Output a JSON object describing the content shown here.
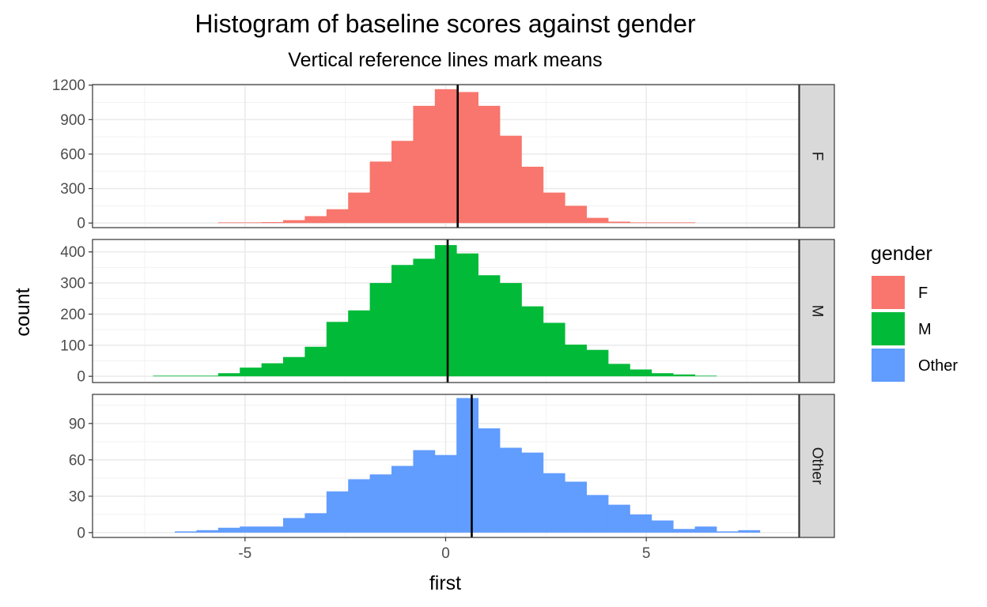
{
  "chart_data": {
    "type": "bar",
    "title": "Histogram of baseline scores against gender",
    "subtitle": "Vertical reference lines mark means",
    "xlabel": "first",
    "ylabel": "count",
    "xlim": [
      -8.8,
      8.8
    ],
    "x_ticks": [
      -5,
      0,
      5
    ],
    "x_tick_labels": [
      "-5",
      "0",
      "5"
    ],
    "bin_width": 0.54,
    "grid": true,
    "legend": {
      "title": "gender",
      "position": "right",
      "entries": [
        {
          "label": "F",
          "color": "#F8766D"
        },
        {
          "label": "M",
          "color": "#00BA38"
        },
        {
          "label": "Other",
          "color": "#619CFF"
        }
      ]
    },
    "panels": [
      {
        "name": "F",
        "color": "#F8766D",
        "mean": 0.3,
        "ylim": [
          -40,
          1205
        ],
        "y_ticks": [
          0,
          300,
          600,
          900,
          1200
        ],
        "y_tick_labels": [
          "0",
          "300",
          "600",
          "900",
          "1200"
        ],
        "bins": [
          {
            "x": -5.4,
            "count": 2
          },
          {
            "x": -4.86,
            "count": 4
          },
          {
            "x": -4.32,
            "count": 8
          },
          {
            "x": -3.78,
            "count": 25
          },
          {
            "x": -3.24,
            "count": 60
          },
          {
            "x": -2.7,
            "count": 120
          },
          {
            "x": -2.16,
            "count": 265
          },
          {
            "x": -1.62,
            "count": 535
          },
          {
            "x": -1.08,
            "count": 715
          },
          {
            "x": -0.54,
            "count": 1020
          },
          {
            "x": 0.0,
            "count": 1165
          },
          {
            "x": 0.54,
            "count": 1140
          },
          {
            "x": 1.08,
            "count": 1020
          },
          {
            "x": 1.62,
            "count": 760
          },
          {
            "x": 2.16,
            "count": 490
          },
          {
            "x": 2.7,
            "count": 265
          },
          {
            "x": 3.24,
            "count": 150
          },
          {
            "x": 3.78,
            "count": 45
          },
          {
            "x": 4.32,
            "count": 12
          },
          {
            "x": 4.86,
            "count": 4
          },
          {
            "x": 5.4,
            "count": 2
          },
          {
            "x": 5.94,
            "count": 1
          }
        ]
      },
      {
        "name": "M",
        "color": "#00BA38",
        "mean": 0.05,
        "ylim": [
          -20,
          440
        ],
        "y_ticks": [
          0,
          100,
          200,
          300,
          400
        ],
        "y_tick_labels": [
          "0",
          "100",
          "200",
          "300",
          "400"
        ],
        "bins": [
          {
            "x": -7.02,
            "count": 1
          },
          {
            "x": -6.48,
            "count": 1
          },
          {
            "x": -5.94,
            "count": 2
          },
          {
            "x": -5.4,
            "count": 10
          },
          {
            "x": -4.86,
            "count": 28
          },
          {
            "x": -4.32,
            "count": 42
          },
          {
            "x": -3.78,
            "count": 62
          },
          {
            "x": -3.24,
            "count": 95
          },
          {
            "x": -2.7,
            "count": 175
          },
          {
            "x": -2.16,
            "count": 212
          },
          {
            "x": -1.62,
            "count": 300
          },
          {
            "x": -1.08,
            "count": 358
          },
          {
            "x": -0.54,
            "count": 378
          },
          {
            "x": 0.0,
            "count": 422
          },
          {
            "x": 0.54,
            "count": 395
          },
          {
            "x": 1.08,
            "count": 325
          },
          {
            "x": 1.62,
            "count": 300
          },
          {
            "x": 2.16,
            "count": 225
          },
          {
            "x": 2.7,
            "count": 172
          },
          {
            "x": 3.24,
            "count": 102
          },
          {
            "x": 3.78,
            "count": 85
          },
          {
            "x": 4.32,
            "count": 40
          },
          {
            "x": 4.86,
            "count": 22
          },
          {
            "x": 5.4,
            "count": 10
          },
          {
            "x": 5.94,
            "count": 6
          },
          {
            "x": 6.48,
            "count": 2
          }
        ]
      },
      {
        "name": "Other",
        "color": "#619CFF",
        "mean": 0.65,
        "ylim": [
          -4,
          114
        ],
        "y_ticks": [
          0,
          30,
          60,
          90
        ],
        "y_tick_labels": [
          "0",
          "30",
          "60",
          "90"
        ],
        "bins": [
          {
            "x": -6.48,
            "count": 1
          },
          {
            "x": -5.94,
            "count": 2
          },
          {
            "x": -5.4,
            "count": 4
          },
          {
            "x": -4.86,
            "count": 5
          },
          {
            "x": -4.32,
            "count": 5
          },
          {
            "x": -3.78,
            "count": 12
          },
          {
            "x": -3.24,
            "count": 16
          },
          {
            "x": -2.7,
            "count": 34
          },
          {
            "x": -2.16,
            "count": 44
          },
          {
            "x": -1.62,
            "count": 48
          },
          {
            "x": -1.08,
            "count": 55
          },
          {
            "x": -0.54,
            "count": 68
          },
          {
            "x": 0.0,
            "count": 64
          },
          {
            "x": 0.54,
            "count": 111
          },
          {
            "x": 1.08,
            "count": 86
          },
          {
            "x": 1.62,
            "count": 70
          },
          {
            "x": 2.16,
            "count": 66
          },
          {
            "x": 2.7,
            "count": 49
          },
          {
            "x": 3.24,
            "count": 42
          },
          {
            "x": 3.78,
            "count": 31
          },
          {
            "x": 4.32,
            "count": 23
          },
          {
            "x": 4.86,
            "count": 15
          },
          {
            "x": 5.4,
            "count": 10
          },
          {
            "x": 5.94,
            "count": 3
          },
          {
            "x": 6.48,
            "count": 5
          },
          {
            "x": 7.02,
            "count": 1
          },
          {
            "x": 7.56,
            "count": 2
          }
        ]
      }
    ]
  }
}
